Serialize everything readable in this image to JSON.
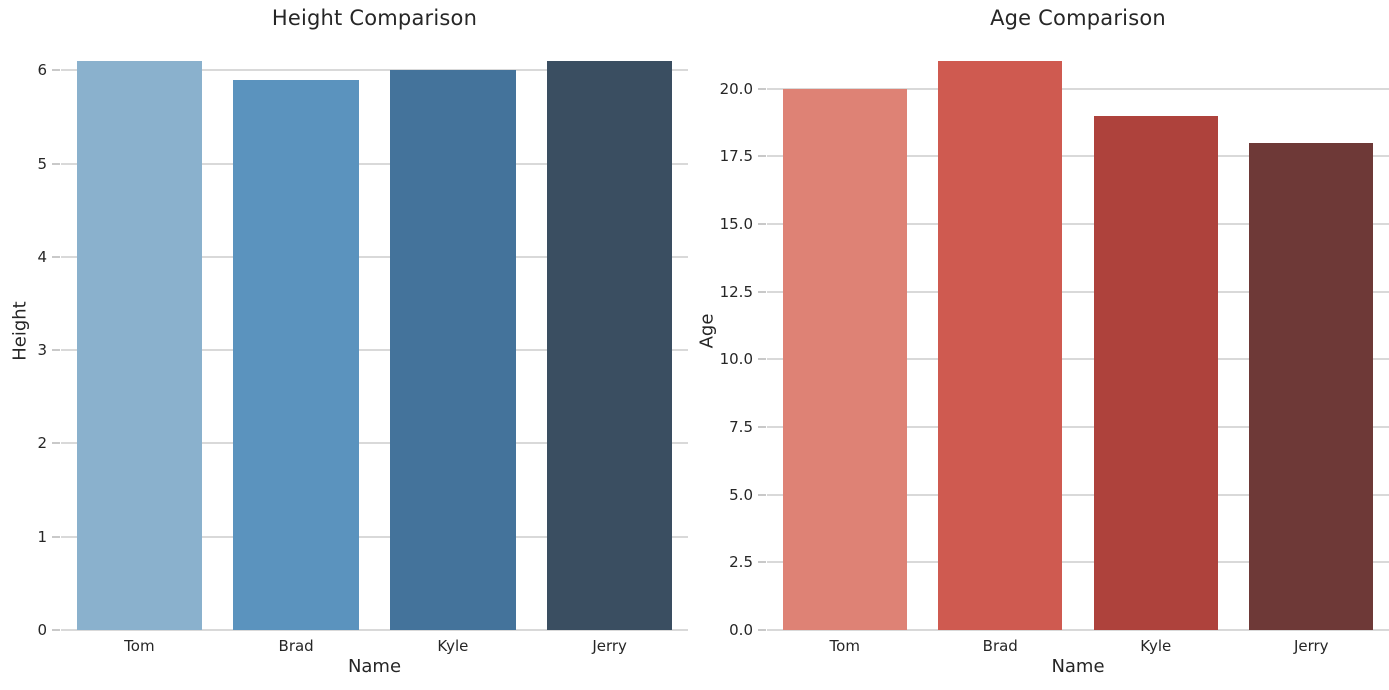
{
  "figure": {
    "background": "#ffffff",
    "text_color": "#262626",
    "grid_color": "#d9d9d9",
    "tick_color": "#c9c9c9"
  },
  "chart_data": [
    {
      "type": "bar",
      "title": "Height Comparison",
      "xlabel": "Name",
      "ylabel": "Height",
      "categories": [
        "Tom",
        "Brad",
        "Kyle",
        "Jerry"
      ],
      "values": [
        6.1,
        5.9,
        6.0,
        6.1
      ],
      "bar_colors": [
        "#8ab1cd",
        "#5b93be",
        "#44739b",
        "#3a4e61"
      ],
      "ylim": [
        0,
        6.4
      ],
      "yticks": [
        {
          "value": 0,
          "label": "0"
        },
        {
          "value": 1,
          "label": "1"
        },
        {
          "value": 2,
          "label": "2"
        },
        {
          "value": 3,
          "label": "3"
        },
        {
          "value": 4,
          "label": "4"
        },
        {
          "value": 5,
          "label": "5"
        },
        {
          "value": 6,
          "label": "6"
        }
      ],
      "grid": "horizontal",
      "legend": "none"
    },
    {
      "type": "bar",
      "title": "Age Comparison",
      "xlabel": "Name",
      "ylabel": "Age",
      "categories": [
        "Tom",
        "Brad",
        "Kyle",
        "Jerry"
      ],
      "values": [
        20,
        21,
        19,
        18
      ],
      "bar_colors": [
        "#de8275",
        "#cf5a50",
        "#ae423c",
        "#6e3937"
      ],
      "ylim": [
        0,
        22.05
      ],
      "yticks": [
        {
          "value": 0,
          "label": "0.0"
        },
        {
          "value": 2.5,
          "label": "2.5"
        },
        {
          "value": 5,
          "label": "5.0"
        },
        {
          "value": 7.5,
          "label": "7.5"
        },
        {
          "value": 10,
          "label": "10.0"
        },
        {
          "value": 12.5,
          "label": "12.5"
        },
        {
          "value": 15,
          "label": "15.0"
        },
        {
          "value": 17.5,
          "label": "17.5"
        },
        {
          "value": 20,
          "label": "20.0"
        }
      ],
      "grid": "horizontal",
      "legend": "none"
    }
  ]
}
